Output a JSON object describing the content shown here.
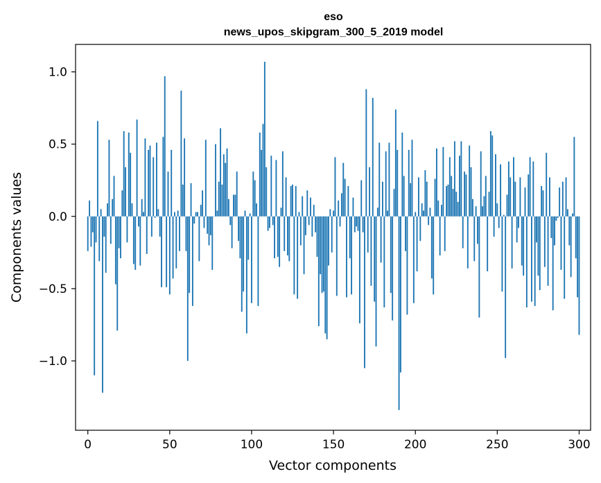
{
  "chart_data": {
    "type": "bar",
    "title": "eso",
    "subtitle": "news_upos_skipgram_300_5_2019 model",
    "xlabel": "Vector components",
    "ylabel": "Components values",
    "xlim": [
      -7.5,
      307
    ],
    "ylim": [
      -1.48,
      1.19
    ],
    "xticks": [
      0,
      50,
      100,
      150,
      200,
      250,
      300
    ],
    "yticks": [
      -1.0,
      -0.5,
      0.0,
      0.5,
      1.0
    ],
    "xtick_labels": [
      "0",
      "50",
      "100",
      "150",
      "200",
      "250",
      "300"
    ],
    "ytick_labels": [
      "−1.0",
      "−0.5",
      "0.0",
      "0.5",
      "1.0"
    ],
    "bar_color": "#1f77b4",
    "values": [
      -0.24,
      0.11,
      -0.21,
      -0.11,
      -1.1,
      -0.18,
      0.66,
      -0.31,
      0.05,
      -1.22,
      -0.14,
      -0.39,
      0.09,
      0.53,
      -0.19,
      0.12,
      0.28,
      -0.47,
      -0.79,
      -0.22,
      -0.29,
      0.18,
      0.59,
      0.34,
      -0.18,
      0.58,
      0.44,
      0.09,
      -0.33,
      -0.37,
      0.67,
      -0.07,
      -0.34,
      0.12,
      0.03,
      0.54,
      -0.26,
      0.46,
      0.49,
      -0.14,
      0.41,
      -0.01,
      0.51,
      0.05,
      -0.14,
      -0.49,
      0.55,
      0.97,
      -0.49,
      0.31,
      -0.54,
      0.46,
      -0.43,
      0.03,
      -0.36,
      0.04,
      -0.24,
      0.87,
      0.22,
      0.54,
      -0.24,
      -1.0,
      -0.53,
      0.23,
      -0.62,
      -0.05,
      0.03,
      0.03,
      -0.31,
      0.08,
      0.18,
      -0.08,
      0.53,
      -0.12,
      -0.2,
      -0.13,
      -0.37,
      0.0,
      0.5,
      0.04,
      0.24,
      0.61,
      0.22,
      0.43,
      0.37,
      0.47,
      0.12,
      -0.06,
      -0.22,
      0.15,
      0.15,
      0.31,
      -0.17,
      -0.29,
      -0.66,
      -0.52,
      0.04,
      -0.81,
      -0.3,
      0.02,
      -0.6,
      0.31,
      0.25,
      0.09,
      -0.62,
      0.58,
      0.46,
      0.64,
      1.07,
      0.34,
      -0.1,
      -0.08,
      0.42,
      -0.06,
      -0.29,
      0.39,
      -0.28,
      -0.35,
      0.06,
      0.45,
      -0.24,
      0.27,
      -0.27,
      -0.31,
      0.21,
      0.22,
      -0.54,
      0.21,
      -0.57,
      0.03,
      -0.2,
      0.14,
      -0.4,
      -0.13,
      0.18,
      -0.06,
      0.13,
      -0.14,
      0.08,
      -0.11,
      -0.28,
      -0.76,
      -0.4,
      -0.53,
      -0.52,
      -0.81,
      -0.85,
      -0.34,
      0.05,
      -0.25,
      0.04,
      0.41,
      -0.55,
      0.11,
      -0.07,
      0.16,
      0.37,
      0.26,
      -0.56,
      0.21,
      -0.29,
      -0.54,
      0.13,
      -0.11,
      -0.07,
      -0.1,
      -0.74,
      0.25,
      -0.11,
      -1.05,
      0.88,
      -0.25,
      0.34,
      -0.48,
      0.82,
      -0.59,
      -0.9,
      0.06,
      0.51,
      -0.32,
      0.24,
      -0.63,
      0.45,
      0.04,
      0.51,
      -0.53,
      -0.72,
      0.19,
      0.74,
      0.46,
      -1.34,
      -1.08,
      0.58,
      0.28,
      -0.24,
      -0.68,
      0.46,
      0.23,
      0.53,
      -0.6,
      0.03,
      -0.38,
      0.27,
      -0.17,
      0.09,
      0.04,
      0.32,
      0.24,
      -0.06,
      0.06,
      -0.43,
      -0.54,
      0.26,
      0.47,
      0.11,
      -0.27,
      0.08,
      0.48,
      -0.24,
      0.21,
      0.22,
      0.41,
      0.28,
      0.19,
      0.52,
      0.17,
      0.1,
      0.42,
      0.52,
      -0.22,
      0.31,
      0.29,
      -0.36,
      0.49,
      0.34,
      0.12,
      -0.31,
      0.07,
      -0.19,
      -0.7,
      0.45,
      0.07,
      0.14,
      0.28,
      -0.38,
      0.17,
      0.59,
      0.56,
      -0.14,
      0.43,
      0.09,
      -0.08,
      0.36,
      -0.52,
      0.01,
      -0.98,
      0.15,
      0.38,
      0.27,
      -0.36,
      0.41,
      0.24,
      -0.18,
      -0.08,
      0.27,
      -0.34,
      -0.41,
      0.2,
      -0.63,
      0.29,
      0.41,
      -0.59,
      0.38,
      -0.62,
      -0.18,
      -0.41,
      -0.51,
      0.21,
      0.18,
      -0.35,
      0.44,
      -0.48,
      0.27,
      -0.15,
      -0.65,
      -0.2,
      -0.03,
      -0.01,
      0.2,
      -0.37,
      0.24,
      -0.57,
      0.27,
      0.05,
      -0.2,
      -0.42,
      0.02,
      0.55,
      -0.29,
      -0.56,
      -0.82
    ]
  }
}
